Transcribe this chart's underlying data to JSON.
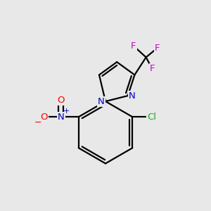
{
  "background_color": "#e8e8e8",
  "bond_color": "#000000",
  "atom_colors": {
    "N": "#0000cc",
    "O": "#ff0000",
    "Cl": "#22aa22",
    "F": "#cc00cc",
    "C": "#000000"
  },
  "bond_width": 1.6,
  "figsize": [
    3.0,
    3.0
  ],
  "dpi": 100,
  "xlim": [
    0,
    10
  ],
  "ylim": [
    0,
    10
  ]
}
